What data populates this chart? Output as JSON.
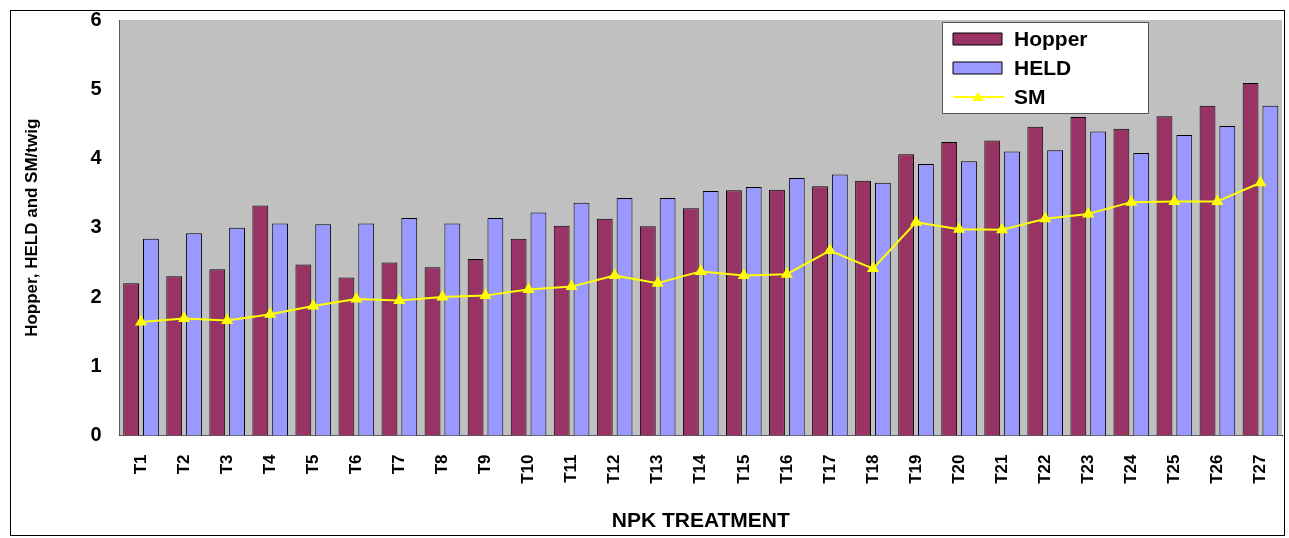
{
  "chart_data": {
    "type": "bar",
    "xlabel": "NPK TREATMENT",
    "ylabel": "Hopper, HELD and SM/twig",
    "categories": [
      "T1",
      "T2",
      "T3",
      "T4",
      "T5",
      "T6",
      "T7",
      "T8",
      "T9",
      "T10",
      "T11",
      "T12",
      "T13",
      "T14",
      "T15",
      "T16",
      "T17",
      "T18",
      "T19",
      "T20",
      "T21",
      "T22",
      "T23",
      "T24",
      "T25",
      "T26",
      "T27"
    ],
    "series": [
      {
        "name": "Hopper",
        "color": "#993366",
        "values": [
          2.2,
          2.3,
          2.4,
          3.32,
          2.47,
          2.28,
          2.5,
          2.43,
          2.55,
          2.84,
          3.03,
          3.13,
          3.02,
          3.28,
          3.54,
          3.55,
          3.6,
          3.68,
          4.06,
          4.24,
          4.26,
          4.46,
          4.6,
          4.43,
          4.61,
          4.76,
          5.09
        ]
      },
      {
        "name": "HELD",
        "color": "#9999ff",
        "values": [
          2.84,
          2.92,
          3.0,
          3.06,
          3.05,
          3.06,
          3.14,
          3.06,
          3.14,
          3.22,
          3.36,
          3.43,
          3.43,
          3.53,
          3.59,
          3.72,
          3.77,
          3.65,
          3.92,
          3.96,
          4.1,
          4.12,
          4.39,
          4.08,
          4.34,
          4.47,
          4.76
        ]
      },
      {
        "name": "SM",
        "type": "line",
        "color": "#ffff00",
        "marker": "triangle",
        "values": [
          1.64,
          1.69,
          1.66,
          1.75,
          1.87,
          1.97,
          1.95,
          2.0,
          2.02,
          2.11,
          2.15,
          2.31,
          2.2,
          2.37,
          2.31,
          2.33,
          2.67,
          2.41,
          3.08,
          2.98,
          2.97,
          3.13,
          3.2,
          3.37,
          3.38,
          3.38,
          3.65
        ]
      }
    ],
    "ylim": [
      0,
      6
    ],
    "yticks": [
      0,
      1,
      2,
      3,
      4,
      5,
      6
    ],
    "grid": false,
    "legend": "top right"
  }
}
